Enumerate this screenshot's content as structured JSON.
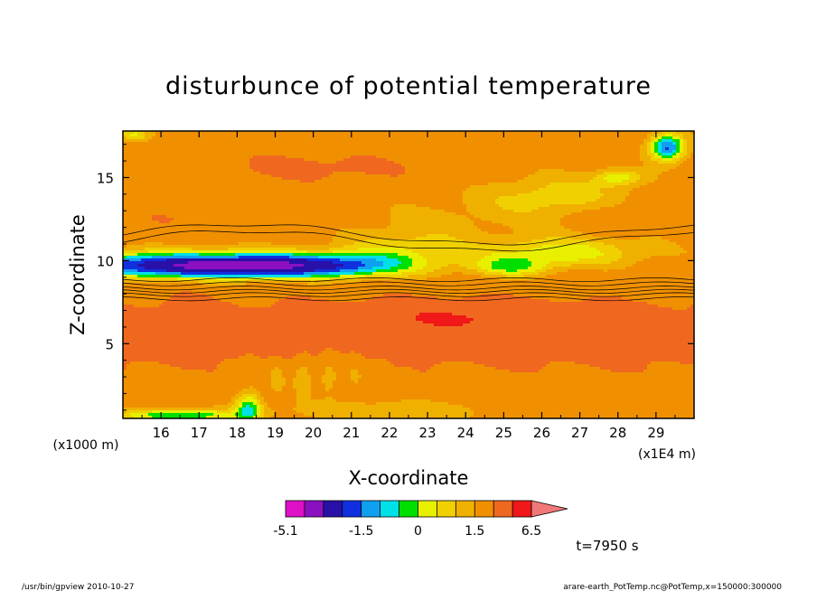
{
  "chart_data": {
    "type": "heatmap",
    "title": "disturbunce of potential temperature",
    "xlabel": "X-coordinate",
    "ylabel": "Z-coordinate",
    "x_unit": "(x1E4 m)",
    "y_unit": "(x1000 m)",
    "x_ticks": [
      "16",
      "17",
      "18",
      "19",
      "20",
      "21",
      "22",
      "23",
      "24",
      "25",
      "26",
      "27",
      "28",
      "29"
    ],
    "y_ticks": [
      "5",
      "10",
      "15"
    ],
    "xlim": [
      15.0,
      30.0
    ],
    "ylim": [
      0.5,
      17.8
    ],
    "levels": [
      -5.1,
      -4.1,
      -3.1,
      -2.1,
      -1.5,
      -1.0,
      -0.5,
      0,
      0.5,
      1.0,
      1.5,
      2.5,
      4.0,
      5.3,
      6.5
    ],
    "level_colors": [
      "#e010c8",
      "#8a10c0",
      "#2810a8",
      "#1030e0",
      "#10a0f0",
      "#00e0e8",
      "#00e000",
      "#e8f000",
      "#f0d000",
      "#f0b000",
      "#f09000",
      "#f06820",
      "#f01818",
      "#f07878"
    ],
    "colorbar_labels": [
      {
        "text": "-5.1",
        "value": -5.1
      },
      {
        "text": "-1.5",
        "value": -1.5
      },
      {
        "text": "0",
        "value": 0
      },
      {
        "text": "1.5",
        "value": 1.5
      },
      {
        "text": "6.5",
        "value": 6.5
      }
    ],
    "time_label": "t=7950 s"
  },
  "footer": {
    "left": "/usr/bin/gpview   2010-10-27",
    "right": "arare-earth_PotTemp.nc@PotTemp,x=150000:300000"
  }
}
